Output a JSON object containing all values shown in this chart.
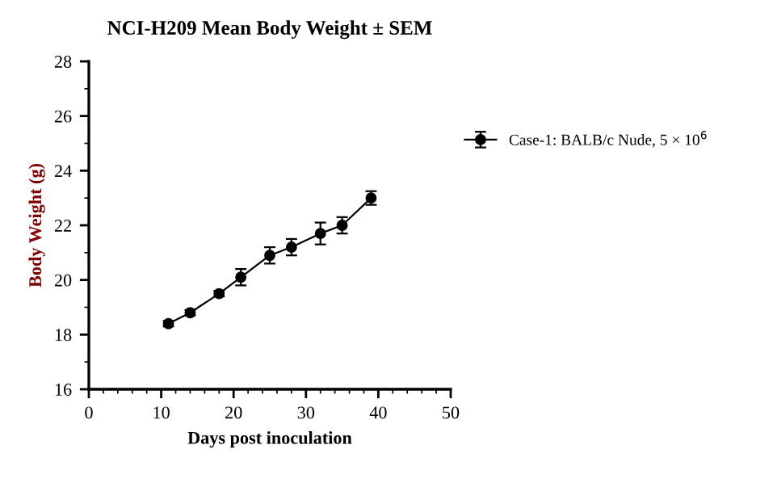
{
  "chart_data": {
    "type": "line",
    "title": "NCI-H209 Mean Body Weight ± SEM",
    "xlabel": "Days post inoculation",
    "ylabel": "Body Weight (g)",
    "series": [
      {
        "name": "Case-1: BALB/c Nude, 5 × 10$^{6}$",
        "color": "#000000",
        "x": [
          11,
          14,
          18,
          21,
          25,
          28,
          32,
          35,
          39
        ],
        "values": [
          18.4,
          18.8,
          19.5,
          20.1,
          20.9,
          21.2,
          21.7,
          22.0,
          23.0
        ],
        "errors": [
          0.1,
          0.1,
          0.1,
          0.3,
          0.3,
          0.3,
          0.4,
          0.3,
          0.25
        ]
      }
    ],
    "xlim": [
      0,
      50
    ],
    "xticks": [
      0,
      10,
      20,
      30,
      40,
      50
    ],
    "ylim": [
      16,
      28
    ],
    "yticks": [
      16,
      18,
      20,
      22,
      24,
      26,
      28
    ],
    "marker": "circle",
    "line_style": "solid",
    "legend": "right",
    "grid": false
  }
}
